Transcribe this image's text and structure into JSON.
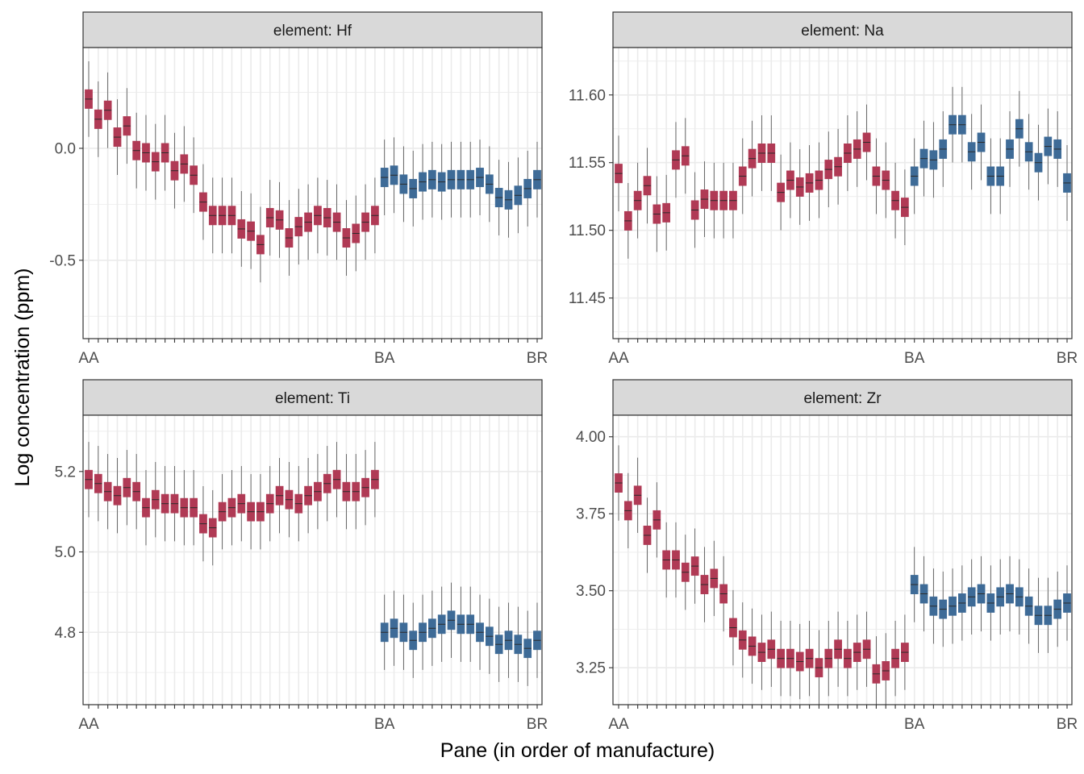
{
  "figure": {
    "ylabel": "Log concentration (ppm)",
    "xlabel": "Pane (in order of manufacture)"
  },
  "colors": {
    "group_A": "#B03A55",
    "group_B": "#3E6B97",
    "strip_fill": "#D9D9D9",
    "grid": "#EBEBEB"
  },
  "chart_data": [
    {
      "type": "boxplot",
      "panel": "element: Hf",
      "strip_label": "element: Hf",
      "ylim": [
        -0.85,
        0.45
      ],
      "y_ticks": [
        0.0,
        -0.5
      ],
      "y_tick_labels": [
        "0.0",
        "-0.5"
      ],
      "x_count": 48,
      "x_tick_labels": [
        {
          "index": 0,
          "label": "AA"
        },
        {
          "index": 31,
          "label": "BA"
        },
        {
          "index": 47,
          "label": "BR"
        }
      ],
      "group_A_count": 31,
      "medians": [
        0.22,
        0.13,
        0.17,
        0.05,
        0.1,
        -0.01,
        -0.02,
        -0.06,
        -0.02,
        -0.1,
        -0.07,
        -0.12,
        -0.24,
        -0.3,
        -0.3,
        -0.3,
        -0.36,
        -0.37,
        -0.43,
        -0.31,
        -0.32,
        -0.4,
        -0.35,
        -0.33,
        -0.3,
        -0.31,
        -0.33,
        -0.4,
        -0.38,
        -0.33,
        -0.3,
        -0.13,
        -0.12,
        -0.16,
        -0.18,
        -0.15,
        -0.14,
        -0.15,
        -0.14,
        -0.14,
        -0.14,
        -0.13,
        -0.16,
        -0.22,
        -0.23,
        -0.21,
        -0.18,
        -0.14
      ]
    },
    {
      "type": "boxplot",
      "panel": "element: Na",
      "strip_label": "element: Na",
      "ylim": [
        11.42,
        11.635
      ],
      "y_ticks": [
        11.6,
        11.55,
        11.5,
        11.45
      ],
      "y_tick_labels": [
        "11.60",
        "11.55",
        "11.50",
        "11.45"
      ],
      "x_count": 48,
      "x_tick_labels": [
        {
          "index": 0,
          "label": "AA"
        },
        {
          "index": 31,
          "label": "BA"
        },
        {
          "index": 47,
          "label": "BR"
        }
      ],
      "group_A_count": 31,
      "medians": [
        11.542,
        11.507,
        11.522,
        11.533,
        11.512,
        11.513,
        11.552,
        11.555,
        11.515,
        11.523,
        11.522,
        11.522,
        11.522,
        11.54,
        11.553,
        11.557,
        11.557,
        11.528,
        11.537,
        11.532,
        11.535,
        11.537,
        11.545,
        11.547,
        11.557,
        11.56,
        11.565,
        11.54,
        11.537,
        11.522,
        11.517,
        11.54,
        11.553,
        11.552,
        11.56,
        11.578,
        11.578,
        11.558,
        11.565,
        11.54,
        11.54,
        11.56,
        11.575,
        11.558,
        11.55,
        11.562,
        11.56,
        11.535
      ]
    },
    {
      "type": "boxplot",
      "panel": "element: Ti",
      "strip_label": "element: Ti",
      "ylim": [
        4.62,
        5.34
      ],
      "y_ticks": [
        5.2,
        5.0,
        4.8
      ],
      "y_tick_labels": [
        "5.2",
        "5.0",
        "4.8"
      ],
      "x_count": 48,
      "x_tick_labels": [
        {
          "index": 0,
          "label": "AA"
        },
        {
          "index": 31,
          "label": "BA"
        },
        {
          "index": 47,
          "label": "BR"
        }
      ],
      "group_A_count": 31,
      "medians": [
        5.18,
        5.17,
        5.15,
        5.14,
        5.16,
        5.15,
        5.11,
        5.13,
        5.12,
        5.12,
        5.11,
        5.11,
        5.07,
        5.06,
        5.1,
        5.11,
        5.12,
        5.1,
        5.1,
        5.12,
        5.14,
        5.13,
        5.12,
        5.14,
        5.15,
        5.17,
        5.18,
        5.15,
        5.15,
        5.16,
        5.18,
        4.8,
        4.81,
        4.8,
        4.78,
        4.8,
        4.81,
        4.82,
        4.83,
        4.82,
        4.82,
        4.8,
        4.79,
        4.77,
        4.78,
        4.77,
        4.76,
        4.78
      ]
    },
    {
      "type": "boxplot",
      "panel": "element: Zr",
      "strip_label": "element: Zr",
      "ylim": [
        3.13,
        4.07
      ],
      "y_ticks": [
        4.0,
        3.75,
        3.5,
        3.25
      ],
      "y_tick_labels": [
        "4.00",
        "3.75",
        "3.50",
        "3.25"
      ],
      "x_count": 48,
      "x_tick_labels": [
        {
          "index": 0,
          "label": "AA"
        },
        {
          "index": 31,
          "label": "BA"
        },
        {
          "index": 47,
          "label": "BR"
        }
      ],
      "group_A_count": 31,
      "medians": [
        3.85,
        3.76,
        3.81,
        3.68,
        3.73,
        3.6,
        3.6,
        3.56,
        3.58,
        3.52,
        3.54,
        3.49,
        3.38,
        3.34,
        3.32,
        3.3,
        3.31,
        3.28,
        3.28,
        3.27,
        3.28,
        3.25,
        3.28,
        3.31,
        3.28,
        3.3,
        3.31,
        3.23,
        3.24,
        3.28,
        3.3,
        3.52,
        3.49,
        3.45,
        3.44,
        3.45,
        3.46,
        3.48,
        3.49,
        3.46,
        3.48,
        3.49,
        3.48,
        3.45,
        3.42,
        3.42,
        3.44,
        3.46
      ]
    }
  ]
}
